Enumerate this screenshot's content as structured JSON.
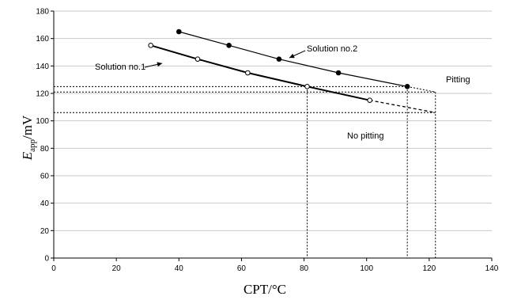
{
  "chart_data": {
    "type": "scatter",
    "xlabel": "CPT/°C",
    "ylabel_main": "E",
    "ylabel_sub": "app",
    "ylabel_unit": "/mV",
    "xlim": [
      0,
      140
    ],
    "ylim": [
      0,
      180
    ],
    "xticks": [
      0,
      20,
      40,
      60,
      80,
      100,
      120,
      140
    ],
    "xtick_labels": [
      "0",
      "20",
      "40",
      "60",
      "80",
      "100",
      "120",
      "140"
    ],
    "yticks": [
      0,
      20,
      40,
      60,
      80,
      100,
      120,
      140,
      160,
      180
    ],
    "ytick_labels": [
      "0",
      "20",
      "40",
      "60",
      "80",
      "100",
      "120",
      "140",
      "160",
      "180"
    ],
    "grid": "horizontal",
    "series": [
      {
        "name": "Solution no.1",
        "marker": "open-circle",
        "x": [
          31,
          46,
          62,
          81,
          101
        ],
        "y": [
          155,
          145,
          135,
          125,
          115
        ],
        "extrapolation": {
          "from": [
            101,
            115
          ],
          "to": [
            122,
            106
          ]
        }
      },
      {
        "name": "Solution no.2",
        "marker": "filled-circle",
        "x": [
          40,
          56,
          72,
          91,
          113
        ],
        "y": [
          165,
          155,
          145,
          135,
          125
        ],
        "extrapolation": {
          "from": [
            113,
            125
          ],
          "to": [
            122,
            121
          ]
        }
      }
    ],
    "reference_lines": {
      "horizontal": [
        {
          "y": 125,
          "x_end": 113
        },
        {
          "y": 121,
          "x_end": 122
        },
        {
          "y": 106,
          "x_end": 122
        }
      ],
      "vertical": [
        {
          "x": 81,
          "y_end": 125
        },
        {
          "x": 113,
          "y_end": 125
        },
        {
          "x": 122,
          "y_end": 121
        }
      ]
    },
    "annotations": {
      "pitting": "Pitting",
      "no_pitting": "No pitting"
    }
  }
}
